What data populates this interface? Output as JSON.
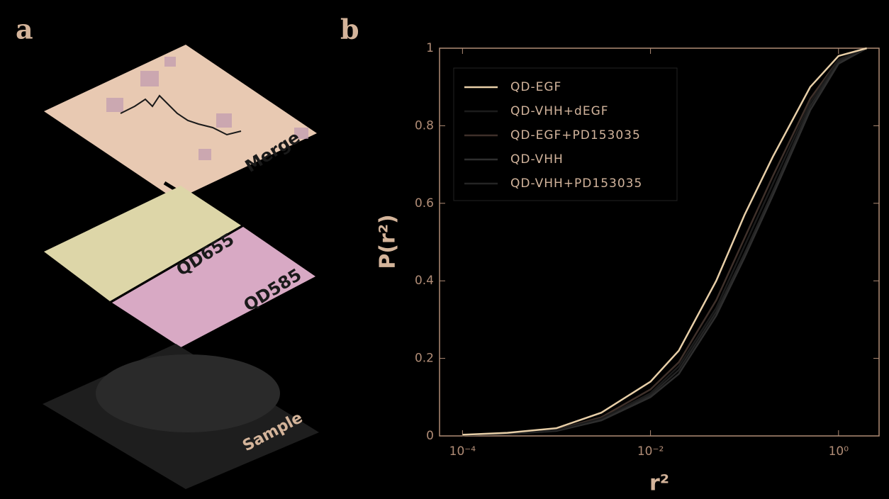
{
  "panel_a": {
    "label": "a",
    "layers": [
      "Merge",
      "QD655",
      "QD585",
      "Sample"
    ]
  },
  "chart_data": {
    "type": "line",
    "panel_label": "b",
    "xlabel": "r²",
    "ylabel": "P(r²)",
    "xscale": "log",
    "xlim": [
      5.7e-05,
      2.7
    ],
    "ylim": [
      0,
      1
    ],
    "xticks": [
      {
        "value": 0.0001,
        "label": "10⁻⁴"
      },
      {
        "value": 0.01,
        "label": "10⁻²"
      },
      {
        "value": 1,
        "label": "10⁰"
      }
    ],
    "yticks": [
      0,
      0.2,
      0.4,
      0.6,
      0.8,
      1
    ],
    "legend": "upper left",
    "x": [
      0.0001,
      0.0003,
      0.001,
      0.003,
      0.01,
      0.02,
      0.05,
      0.1,
      0.2,
      0.5,
      1,
      2
    ],
    "series": [
      {
        "name": "QD-EGF",
        "color": "#e8cfa8",
        "values": [
          0.003,
          0.008,
          0.02,
          0.06,
          0.14,
          0.22,
          0.4,
          0.57,
          0.72,
          0.9,
          0.98,
          1.0
        ]
      },
      {
        "name": "QD-VHH+dEGF",
        "color": "#1c1c1c",
        "values": [
          0.002,
          0.006,
          0.015,
          0.045,
          0.11,
          0.18,
          0.33,
          0.49,
          0.65,
          0.86,
          0.97,
          1.0
        ]
      },
      {
        "name": "QD-EGF+PD153035",
        "color": "#3e302a",
        "values": [
          0.002,
          0.006,
          0.016,
          0.048,
          0.12,
          0.19,
          0.35,
          0.51,
          0.67,
          0.87,
          0.97,
          1.0
        ]
      },
      {
        "name": "QD-VHH",
        "color": "#2e2e2e",
        "values": [
          0.002,
          0.005,
          0.013,
          0.04,
          0.1,
          0.16,
          0.31,
          0.46,
          0.62,
          0.84,
          0.96,
          1.0
        ]
      },
      {
        "name": "QD-VHH+PD153035",
        "color": "#242424",
        "values": [
          0.002,
          0.005,
          0.014,
          0.042,
          0.105,
          0.17,
          0.32,
          0.47,
          0.63,
          0.85,
          0.965,
          1.0
        ]
      }
    ]
  }
}
